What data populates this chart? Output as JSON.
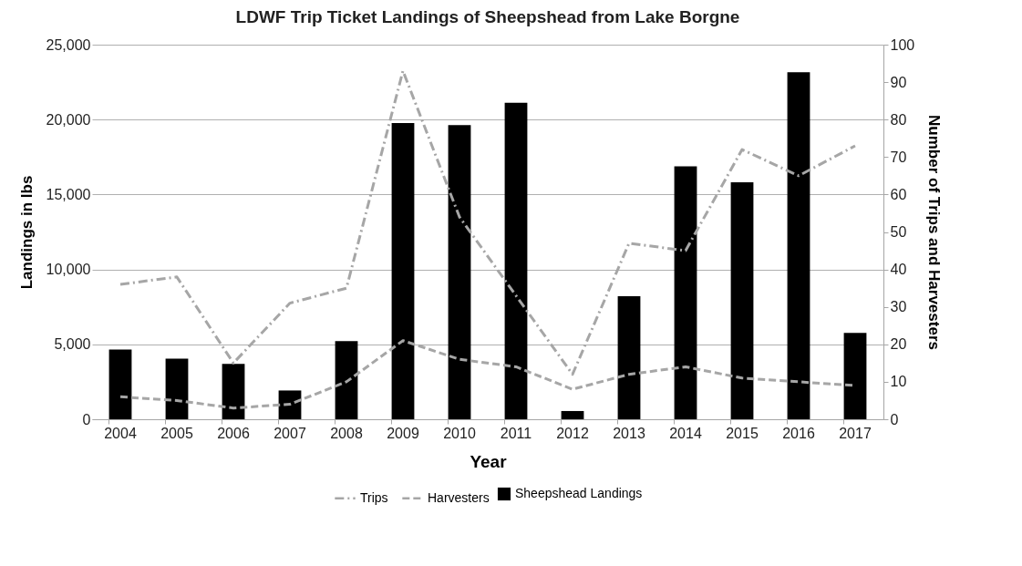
{
  "chart_data": {
    "type": "bar",
    "title": "LDWF Trip Ticket Landings of Sheepshead from Lake Borgne",
    "xlabel": "Year",
    "ylabel": "Landings in lbs",
    "y2label": "Number of Trips and Harvesters",
    "categories": [
      "2004",
      "2005",
      "2006",
      "2007",
      "2008",
      "2009",
      "2010",
      "2011",
      "2012",
      "2013",
      "2014",
      "2015",
      "2016",
      "2017"
    ],
    "ylim": [
      0,
      25000
    ],
    "yticks": [
      0,
      {
        "value": 5000,
        "label": "5,000"
      },
      {
        "value": 10000,
        "label": "10,000"
      },
      {
        "value": 15000,
        "label": "15,000"
      },
      {
        "value": 20000,
        "label": "20,000"
      },
      {
        "value": 25000,
        "label": "25,000"
      }
    ],
    "y2lim": [
      0,
      100
    ],
    "y2ticks": [
      0,
      10,
      20,
      30,
      40,
      50,
      60,
      70,
      80,
      90,
      100
    ],
    "grid": "y",
    "legend": "bottom",
    "series": [
      {
        "name": "Sheepshead Landings",
        "color": "#000000",
        "values": [
          4650,
          4040,
          3690,
          1920,
          5220,
          19770,
          19630,
          21120,
          550,
          8210,
          16880,
          15820,
          23160,
          5770
        ]
      },
      {
        "name": "Trips",
        "type": "line",
        "axis": "y2",
        "color": "#a6a6a6",
        "line_style": "dashdot",
        "values": [
          36,
          38,
          15,
          31,
          35,
          93,
          54,
          33,
          12,
          47,
          45,
          72,
          65,
          73
        ]
      },
      {
        "name": "Harvesters",
        "type": "line",
        "axis": "y2",
        "color": "#a6a6a6",
        "line_style": "dashed",
        "values": [
          6,
          5,
          3,
          4,
          10,
          21,
          16,
          14,
          8,
          12,
          14,
          11,
          10,
          9
        ]
      }
    ]
  }
}
